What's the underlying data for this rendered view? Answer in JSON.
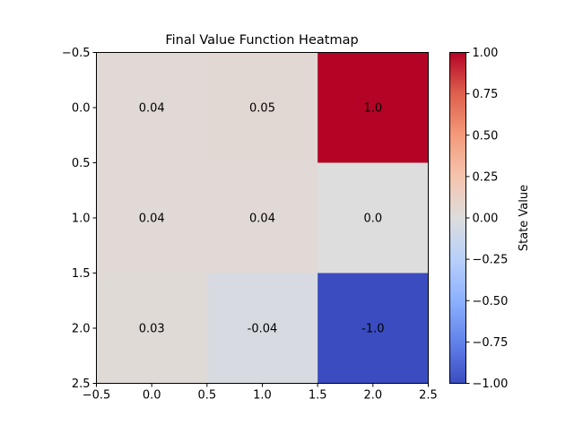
{
  "chart_data": {
    "type": "heatmap",
    "title": "Final Value Function Heatmap",
    "xlabel": "",
    "ylabel": "",
    "xlim": [
      -0.5,
      2.5
    ],
    "ylim": [
      2.5,
      -0.5
    ],
    "x_ticks": [
      "−0.5",
      "0.0",
      "0.5",
      "1.0",
      "1.5",
      "2.0",
      "2.5"
    ],
    "y_ticks": [
      "−0.5",
      "0.0",
      "0.5",
      "1.0",
      "1.5",
      "2.0",
      "2.5"
    ],
    "rows": [
      0,
      1,
      2
    ],
    "cols": [
      0,
      1,
      2
    ],
    "values": [
      [
        0.04,
        0.05,
        1.0
      ],
      [
        0.04,
        0.04,
        0.0
      ],
      [
        0.03,
        -0.04,
        -1.0
      ]
    ],
    "cell_labels": [
      [
        "0.04",
        "0.05",
        "1.0"
      ],
      [
        "0.04",
        "0.04",
        "0.0"
      ],
      [
        "0.03",
        "-0.04",
        "-1.0"
      ]
    ],
    "colorbar": {
      "label": "State Value",
      "range": [
        -1.0,
        1.0
      ],
      "ticks": [
        "−1.00",
        "−0.75",
        "−0.50",
        "−0.25",
        "0.00",
        "0.25",
        "0.50",
        "0.75",
        "1.00"
      ],
      "colormap": "coolwarm"
    },
    "grid": false
  }
}
